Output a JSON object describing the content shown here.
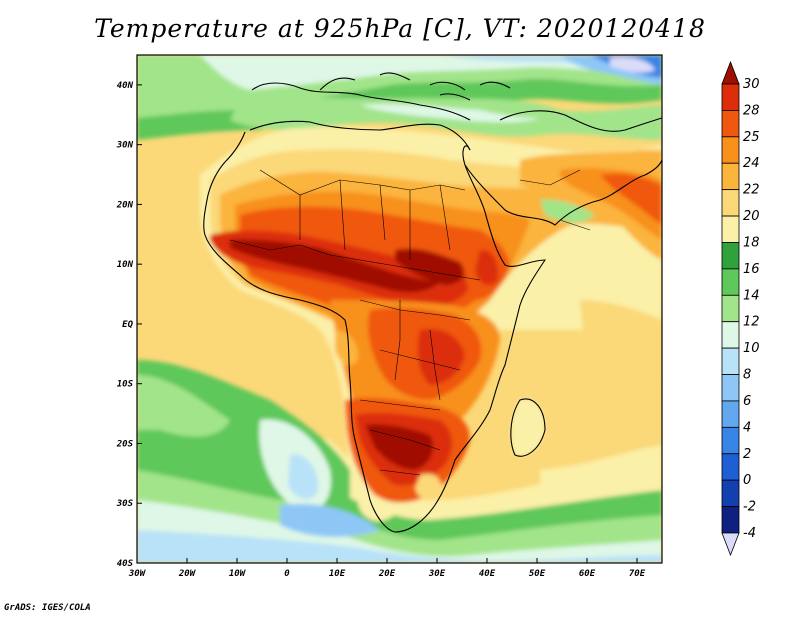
{
  "title": "Temperature at 925hPa [C], VT: 2020120418",
  "footer": "GrADS: IGES/COLA",
  "map": {
    "lon_range": [
      -30,
      75
    ],
    "lat_range": [
      -40,
      45
    ],
    "lon_ticks": [
      {
        "value": -30,
        "label": "30W"
      },
      {
        "value": -20,
        "label": "20W"
      },
      {
        "value": -10,
        "label": "10W"
      },
      {
        "value": 0,
        "label": "0"
      },
      {
        "value": 10,
        "label": "10E"
      },
      {
        "value": 20,
        "label": "20E"
      },
      {
        "value": 30,
        "label": "30E"
      },
      {
        "value": 40,
        "label": "40E"
      },
      {
        "value": 50,
        "label": "50E"
      },
      {
        "value": 60,
        "label": "60E"
      },
      {
        "value": 70,
        "label": "70E"
      }
    ],
    "lat_ticks": [
      {
        "value": 40,
        "label": "40N"
      },
      {
        "value": 30,
        "label": "30N"
      },
      {
        "value": 20,
        "label": "20N"
      },
      {
        "value": 10,
        "label": "10N"
      },
      {
        "value": 0,
        "label": "EQ"
      },
      {
        "value": -10,
        "label": "10S"
      },
      {
        "value": -20,
        "label": "20S"
      },
      {
        "value": -30,
        "label": "30S"
      },
      {
        "value": -40,
        "label": "40S"
      }
    ]
  },
  "colorbar": {
    "levels": [
      "30",
      "28",
      "25",
      "24",
      "22",
      "20",
      "18",
      "16",
      "14",
      "12",
      "10",
      "8",
      "6",
      "4",
      "2",
      "0",
      "-2",
      "-4"
    ],
    "colors": [
      "#a01000",
      "#dc2e0a",
      "#f0580f",
      "#f8901a",
      "#fbb43c",
      "#fbd878",
      "#fbf0a8",
      "#2fa23b",
      "#5ec85a",
      "#a2e48a",
      "#dff7e7",
      "#b8e2f8",
      "#8ec7f6",
      "#61a8ef",
      "#3785e6",
      "#1e5fd4",
      "#1240b0",
      "#102080",
      "#dcdcf8"
    ]
  }
}
